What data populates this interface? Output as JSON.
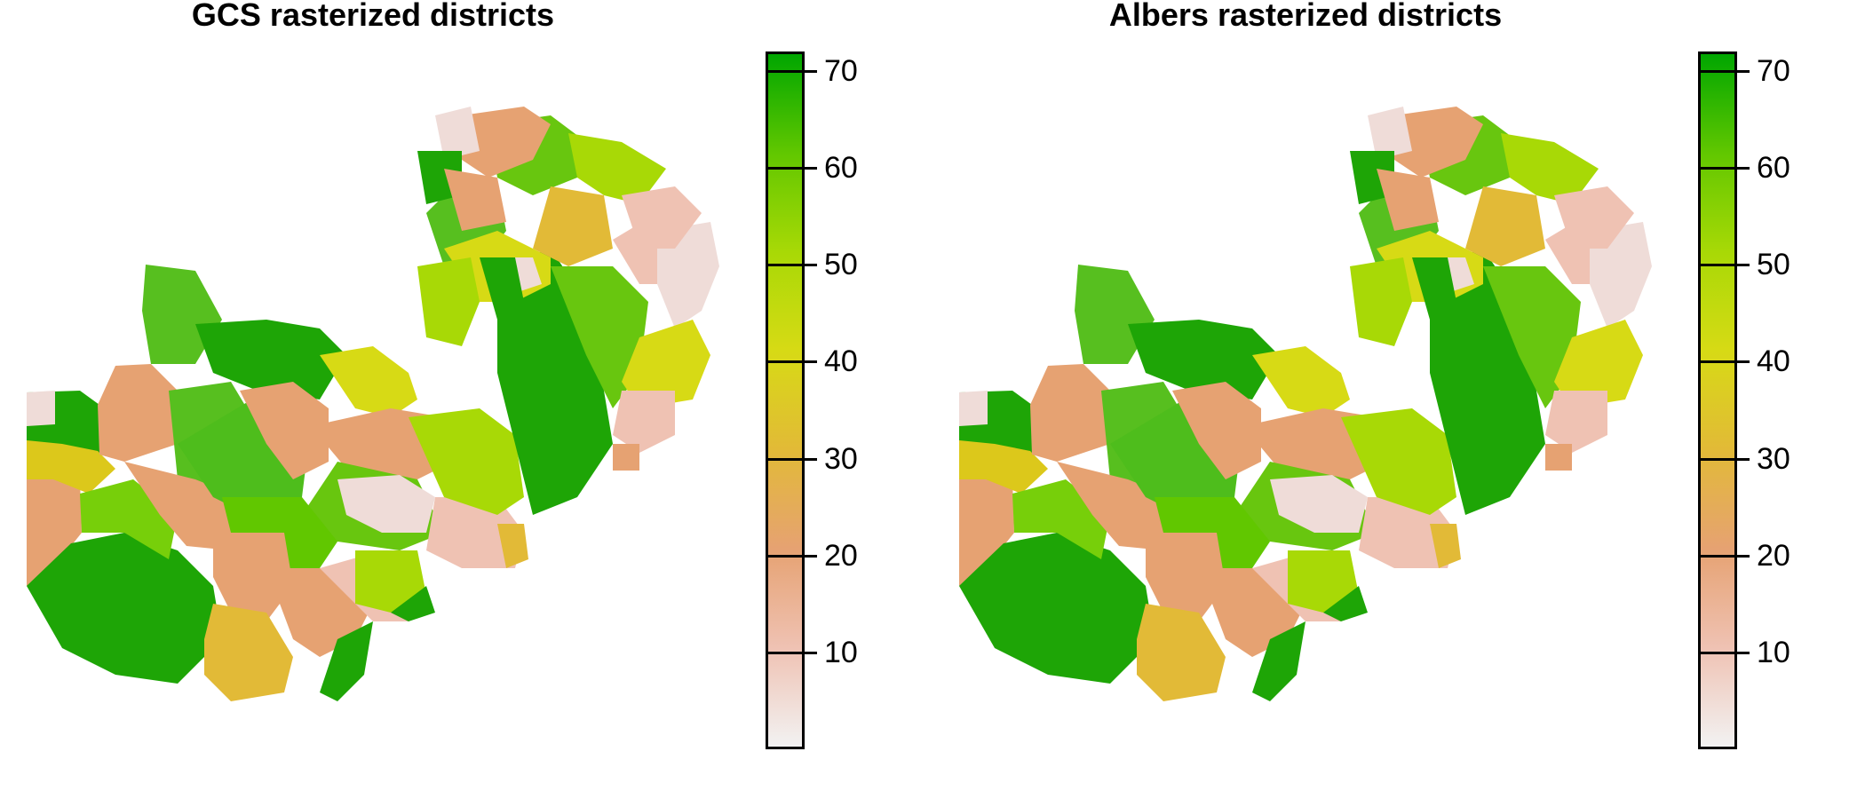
{
  "panels": [
    {
      "title": "GCS rasterized districts",
      "legend": {
        "min": 0,
        "max": 72,
        "ticks": [
          "10",
          "20",
          "30",
          "40",
          "50",
          "60",
          "70"
        ]
      }
    },
    {
      "title": "Albers rasterized districts",
      "legend": {
        "min": 0,
        "max": 72,
        "ticks": [
          "10",
          "20",
          "30",
          "40",
          "50",
          "60",
          "70"
        ]
      }
    }
  ],
  "palette": {
    "stops": [
      "#F2F2F2",
      "#EFC2B3",
      "#E6A272",
      "#E2BA37",
      "#D7DA15",
      "#A8D906",
      "#61C700",
      "#00A600"
    ]
  }
}
